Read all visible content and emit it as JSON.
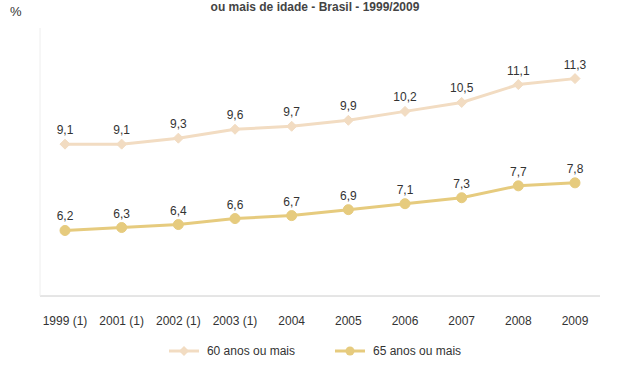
{
  "chart_data": {
    "type": "line",
    "title": "ou mais de idade - Brasil - 1999/2009",
    "y_label": "%",
    "categories": [
      "1999 (1)",
      "2001 (1)",
      "2002 (1)",
      "2003 (1)",
      "2004",
      "2005",
      "2006",
      "2007",
      "2008",
      "2009"
    ],
    "series": [
      {
        "name": "60 anos ou mais",
        "color": "#f2dcc2",
        "marker": "diamond",
        "values": [
          9.1,
          9.1,
          9.3,
          9.6,
          9.7,
          9.9,
          10.2,
          10.5,
          11.1,
          11.3
        ],
        "value_labels": [
          "9,1",
          "9,1",
          "9,3",
          "9,6",
          "9,7",
          "9,9",
          "10,2",
          "10,5",
          "11,1",
          "11,3"
        ]
      },
      {
        "name": "65 anos ou mais",
        "color": "#e6cb7e",
        "marker": "circle",
        "values": [
          6.2,
          6.3,
          6.4,
          6.6,
          6.7,
          6.9,
          7.1,
          7.3,
          7.7,
          7.8
        ],
        "value_labels": [
          "6,2",
          "6,3",
          "6,4",
          "6,6",
          "6,7",
          "6,9",
          "7,1",
          "7,3",
          "7,7",
          "7,8"
        ]
      }
    ],
    "ylim": [
      4,
      13
    ],
    "yticks": [],
    "tick_labels": "x",
    "data_labels": true,
    "legend": "bottom"
  }
}
